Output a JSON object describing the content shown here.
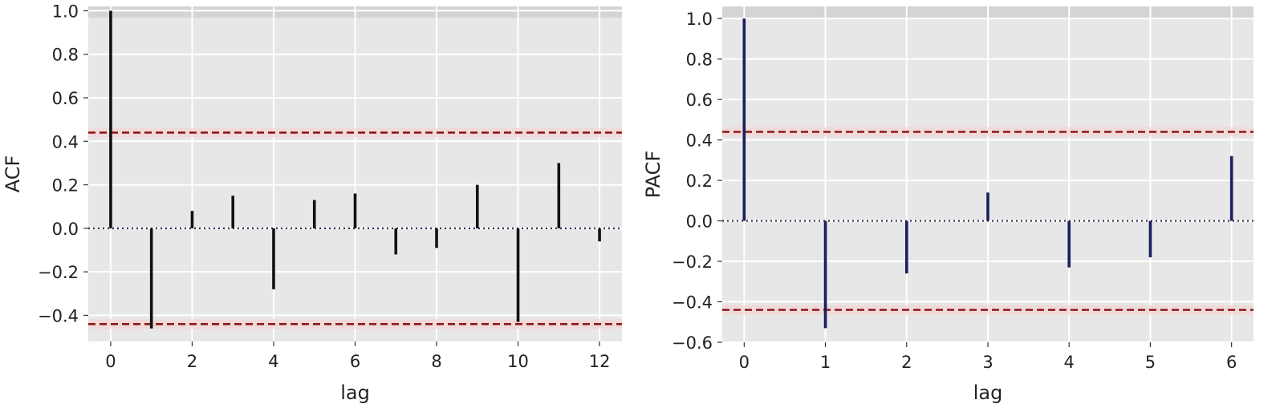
{
  "chart_data": [
    {
      "type": "bar",
      "xlabel": "lag",
      "ylabel": "ACF",
      "xlim": [
        -0.55,
        12.55
      ],
      "ylim": [
        -0.52,
        1.02
      ],
      "xticks": [
        0,
        2,
        4,
        6,
        8,
        10,
        12
      ],
      "xtick_labels": [
        "0",
        "2",
        "4",
        "6",
        "8",
        "10",
        "12"
      ],
      "yticks": [
        1.0,
        0.8,
        0.6,
        0.4,
        0.2,
        0.0,
        -0.2,
        -0.4
      ],
      "ytick_labels": [
        "1.0",
        "0.8",
        "0.6",
        "0.4",
        "0.2",
        "0.0",
        "−0.2",
        "−0.4"
      ],
      "x": [
        0,
        1,
        2,
        3,
        4,
        5,
        6,
        7,
        8,
        9,
        10,
        11,
        12
      ],
      "values": [
        1.0,
        -0.46,
        0.08,
        0.15,
        -0.28,
        0.13,
        0.16,
        -0.12,
        -0.09,
        0.2,
        -0.43,
        0.3,
        -0.06
      ],
      "confidence_band": [
        -0.44,
        0.44
      ],
      "grid": true,
      "colors": {
        "stem": "#111111",
        "band": "#8b1a1a",
        "zero": "#333355",
        "bg": "#e7e7e7"
      }
    },
    {
      "type": "bar",
      "xlabel": "lag",
      "ylabel": "PACF",
      "xlim": [
        -0.27,
        6.27
      ],
      "ylim": [
        -0.6,
        1.06
      ],
      "xticks": [
        0,
        1,
        2,
        3,
        4,
        5,
        6
      ],
      "xtick_labels": [
        "0",
        "1",
        "2",
        "3",
        "4",
        "5",
        "6"
      ],
      "yticks": [
        1.0,
        0.8,
        0.6,
        0.4,
        0.2,
        0.0,
        -0.2,
        -0.4,
        -0.6
      ],
      "ytick_labels": [
        "1.0",
        "0.8",
        "0.6",
        "0.4",
        "0.2",
        "0.0",
        "−0.2",
        "−0.4",
        "−0.6"
      ],
      "x": [
        0,
        1,
        2,
        3,
        4,
        5,
        6
      ],
      "values": [
        1.0,
        -0.53,
        -0.26,
        0.14,
        -0.23,
        -0.18,
        0.32
      ],
      "confidence_band": [
        -0.44,
        0.44
      ],
      "grid": true,
      "colors": {
        "stem": "#1a1f5e",
        "band": "#8b1a1a",
        "zero": "#333355",
        "bg": "#e7e7e7"
      }
    }
  ]
}
